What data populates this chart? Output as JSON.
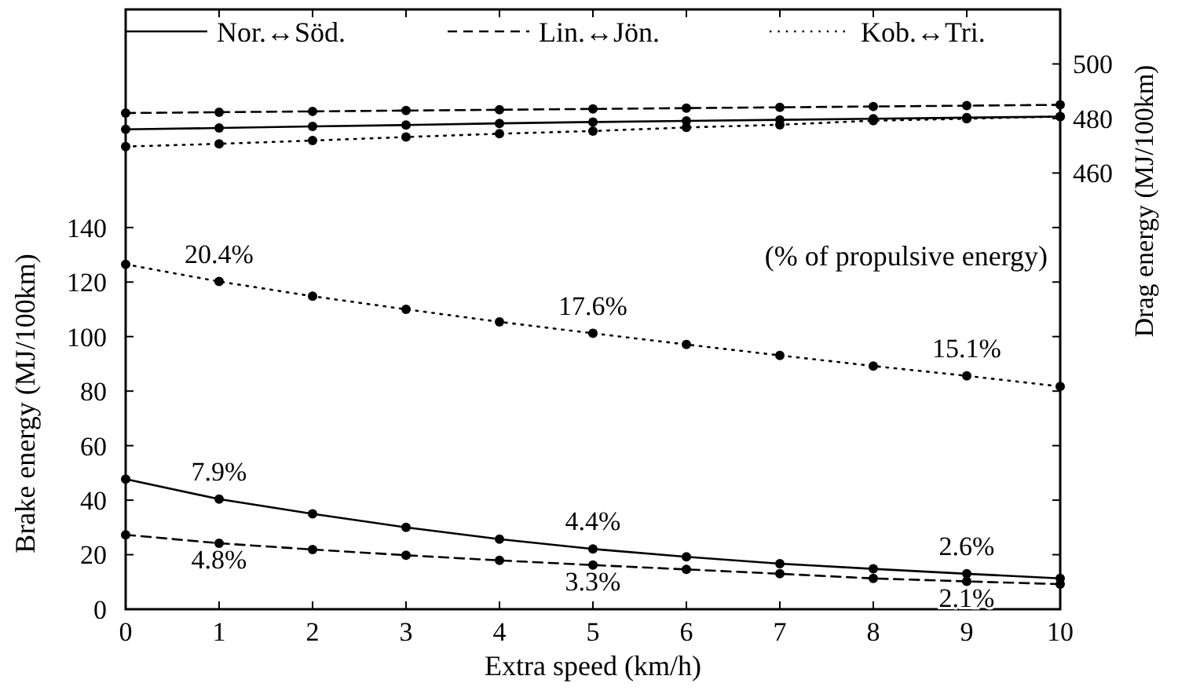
{
  "chart_data": {
    "type": "line",
    "xlabel": "Extra speed (km/h)",
    "ylabel": "Brake energy (MJ/100km)",
    "y2label": "Drag energy (MJ/100km)",
    "x": [
      0,
      1,
      2,
      3,
      4,
      5,
      6,
      7,
      8,
      9,
      10
    ],
    "xlim": [
      0,
      10
    ],
    "xticks": [
      0,
      1,
      2,
      3,
      4,
      5,
      6,
      7,
      8,
      9,
      10
    ],
    "ylim": [
      0,
      220
    ],
    "yticks": [
      0,
      20,
      40,
      60,
      80,
      100,
      120,
      140
    ],
    "y2lim": [
      300,
      520
    ],
    "y2ticks": [
      460,
      480,
      500
    ],
    "legend": "top",
    "marker": "circle",
    "grid": false,
    "series": [
      {
        "name": "Nor.↔Söd.",
        "color": "#000000",
        "line_style": "solid",
        "values": [
          47.7,
          40.4,
          35.0,
          30.0,
          25.7,
          22.1,
          19.2,
          16.7,
          14.8,
          13.0,
          11.3
        ]
      },
      {
        "name": "Lin.↔Jön.",
        "color": "#000000",
        "line_style": "dashed",
        "values": [
          27.3,
          24.2,
          21.9,
          19.8,
          17.9,
          16.2,
          14.6,
          13.0,
          11.3,
          10.2,
          9.2
        ]
      },
      {
        "name": "Kob.↔Tri.",
        "color": "#000000",
        "line_style": "dotted",
        "values": [
          126.5,
          120.2,
          114.8,
          110.0,
          105.4,
          101.2,
          97.1,
          93.1,
          89.2,
          85.6,
          81.7
        ]
      },
      {
        "color": "#000000",
        "line_style": "solid",
        "axis": "y2",
        "values": [
          476.0,
          476.5,
          477.1,
          477.6,
          478.2,
          478.7,
          479.1,
          479.5,
          479.9,
          480.3,
          480.7
        ]
      },
      {
        "color": "#000000",
        "line_style": "dashed",
        "axis": "y2",
        "values": [
          482.0,
          482.3,
          482.6,
          482.9,
          483.2,
          483.5,
          483.8,
          484.1,
          484.4,
          484.7,
          485.0
        ]
      },
      {
        "color": "#000000",
        "line_style": "dotted",
        "axis": "y2",
        "values": [
          469.7,
          470.7,
          471.9,
          473.2,
          474.4,
          475.4,
          476.7,
          477.7,
          479.2,
          479.9,
          480.7
        ]
      }
    ],
    "annotations": [
      {
        "text": "20.4%",
        "x": 1,
        "y": 120.2
      },
      {
        "text": "17.6%",
        "x": 5,
        "y": 101.2
      },
      {
        "text": "15.1%",
        "x": 9,
        "y": 85.6
      },
      {
        "text": "7.9%",
        "x": 1,
        "y": 40.4
      },
      {
        "text": "4.4%",
        "x": 5,
        "y": 22.1
      },
      {
        "text": "2.6%",
        "x": 9,
        "y": 13.0
      },
      {
        "text": "4.8%",
        "x": 1,
        "y": 24.2
      },
      {
        "text": "3.3%",
        "x": 5,
        "y": 16.2
      },
      {
        "text": "2.1%",
        "x": 9,
        "y": 10.2
      },
      "(% of propulsive energy)"
    ]
  }
}
